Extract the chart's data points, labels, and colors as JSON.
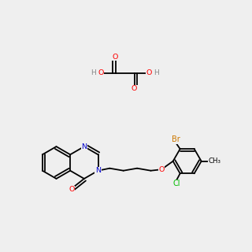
{
  "bg_color": "#efefef",
  "atom_colors": {
    "C": "#000000",
    "N": "#0000cc",
    "O": "#ff0000",
    "Br": "#cc7700",
    "Cl": "#00bb00",
    "H": "#888888"
  },
  "lw": 1.3,
  "r_benz": 0.68,
  "r_ph": 0.6
}
